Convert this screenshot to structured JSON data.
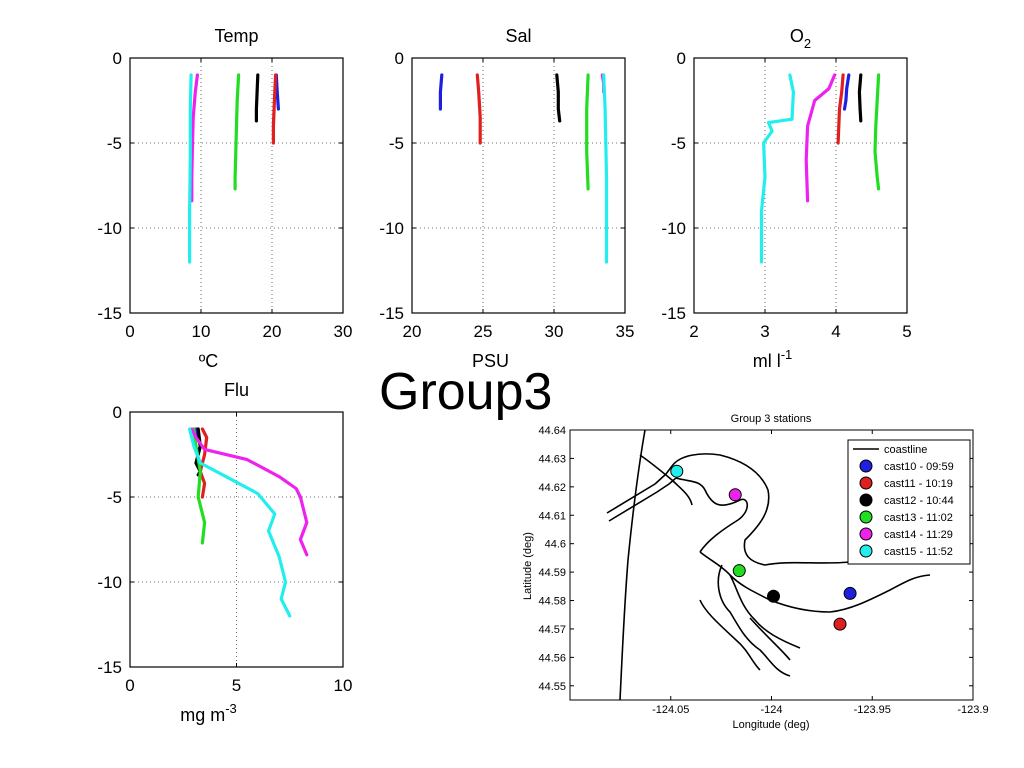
{
  "slide_title": "Group3",
  "profile_colors": {
    "cast10": "#1f1fe0",
    "cast11": "#e01f1f",
    "cast12": "#000000",
    "cast13": "#22dd22",
    "cast14": "#ee22ee",
    "cast15": "#22eeee"
  },
  "chart_data": [
    {
      "type": "line",
      "id": "temp",
      "title": "Temp",
      "xlabel": "ºC",
      "xlim": [
        0,
        30
      ],
      "ylim": [
        -15,
        0
      ],
      "xticks": [
        "0",
        "10",
        "20",
        "30"
      ],
      "yticks": [
        "0",
        "-5",
        "-10",
        "-15"
      ],
      "grid": "dotted",
      "series": [
        {
          "key": "cast10",
          "x": [
            20.6,
            20.7,
            20.8,
            20.9
          ],
          "y": [
            -1,
            -1.8,
            -2.4,
            -3.0
          ]
        },
        {
          "key": "cast11",
          "x": [
            20.5,
            20.4,
            20.3,
            20.2,
            20.2
          ],
          "y": [
            -1,
            -2,
            -3,
            -4,
            -5
          ]
        },
        {
          "key": "cast12",
          "x": [
            18.0,
            17.9,
            17.8,
            17.8
          ],
          "y": [
            -1,
            -2,
            -3,
            -3.7
          ]
        },
        {
          "key": "cast13",
          "x": [
            15.3,
            15.1,
            15.0,
            14.9,
            14.8,
            14.8
          ],
          "y": [
            -1,
            -2.5,
            -4,
            -5.5,
            -7,
            -7.7
          ]
        },
        {
          "key": "cast14",
          "x": [
            9.5,
            9.2,
            8.9,
            8.8,
            8.7,
            8.7
          ],
          "y": [
            -1,
            -2,
            -3.5,
            -5,
            -7,
            -8.4
          ]
        },
        {
          "key": "cast15",
          "x": [
            8.6,
            8.5,
            8.5,
            8.4,
            8.4
          ],
          "y": [
            -1,
            -3,
            -6,
            -9,
            -12
          ]
        }
      ]
    },
    {
      "type": "line",
      "id": "sal",
      "title": "Sal",
      "xlabel": "PSU",
      "xlim": [
        20,
        35
      ],
      "ylim": [
        -15,
        0
      ],
      "xticks": [
        "20",
        "25",
        "30",
        "35"
      ],
      "yticks": [
        "0",
        "-5",
        "-10",
        "-15"
      ],
      "grid": "dotted",
      "series": [
        {
          "key": "cast10",
          "x": [
            22.1,
            22.0,
            22.0
          ],
          "y": [
            -1,
            -2,
            -3
          ]
        },
        {
          "key": "cast11",
          "x": [
            24.6,
            24.7,
            24.8,
            24.8
          ],
          "y": [
            -1,
            -2,
            -3.5,
            -5
          ]
        },
        {
          "key": "cast12",
          "x": [
            30.2,
            30.3,
            30.3,
            30.4
          ],
          "y": [
            -1,
            -2,
            -3,
            -3.7
          ]
        },
        {
          "key": "cast13",
          "x": [
            32.4,
            32.3,
            32.3,
            32.4
          ],
          "y": [
            -1,
            -3,
            -5.5,
            -7.7
          ]
        },
        {
          "key": "cast14",
          "x": [
            33.4,
            33.5,
            33.5
          ],
          "y": [
            -1,
            -1.5,
            -2
          ]
        },
        {
          "key": "cast15",
          "x": [
            33.5,
            33.6,
            33.7,
            33.7
          ],
          "y": [
            -1,
            -3,
            -7,
            -12
          ]
        }
      ]
    },
    {
      "type": "line",
      "id": "o2",
      "title": "O",
      "title_sub": "2",
      "xlabel": "ml l",
      "xlabel_sup": "-1",
      "xlim": [
        2,
        5
      ],
      "ylim": [
        -15,
        0
      ],
      "xticks": [
        "2",
        "3",
        "4",
        "5"
      ],
      "yticks": [
        "0",
        "-5",
        "-10",
        "-15"
      ],
      "grid": "dotted",
      "series": [
        {
          "key": "cast10",
          "x": [
            4.18,
            4.15,
            4.14,
            4.12
          ],
          "y": [
            -1,
            -1.8,
            -2.5,
            -3.0
          ]
        },
        {
          "key": "cast11",
          "x": [
            4.1,
            4.08,
            4.05,
            4.04,
            4.03
          ],
          "y": [
            -1,
            -2,
            -3,
            -4,
            -5
          ]
        },
        {
          "key": "cast12",
          "x": [
            4.35,
            4.33,
            4.34,
            4.35
          ],
          "y": [
            -1,
            -2,
            -3,
            -3.7
          ]
        },
        {
          "key": "cast13",
          "x": [
            4.6,
            4.58,
            4.56,
            4.55,
            4.58,
            4.6
          ],
          "y": [
            -1,
            -2.5,
            -4,
            -5.5,
            -7,
            -7.7
          ]
        },
        {
          "key": "cast14",
          "x": [
            3.98,
            3.9,
            3.7,
            3.6,
            3.58,
            3.6
          ],
          "y": [
            -1,
            -1.8,
            -2.5,
            -4,
            -6,
            -8.4
          ]
        },
        {
          "key": "cast15",
          "x": [
            3.35,
            3.4,
            3.38,
            3.05,
            3.1,
            2.98,
            3.0,
            2.95,
            2.95
          ],
          "y": [
            -1,
            -2,
            -3.6,
            -3.8,
            -4.3,
            -5,
            -7,
            -9,
            -12
          ]
        }
      ]
    },
    {
      "type": "line",
      "id": "flu",
      "title": "Flu",
      "xlabel": "mg m",
      "xlabel_sup": "-3",
      "xlim": [
        0,
        10
      ],
      "ylim": [
        -15,
        0
      ],
      "xticks": [
        "0",
        "5",
        "10"
      ],
      "yticks": [
        "0",
        "-5",
        "-10",
        "-15"
      ],
      "grid": "dotted",
      "series": [
        {
          "key": "cast10",
          "x": [
            3.1,
            3.2,
            3.3,
            3.2
          ],
          "y": [
            -1,
            -1.5,
            -2,
            -2.5
          ]
        },
        {
          "key": "cast11",
          "x": [
            3.4,
            3.6,
            3.5,
            3.3,
            3.5,
            3.4
          ],
          "y": [
            -1,
            -1.5,
            -2.5,
            -3.5,
            -4.2,
            -5
          ]
        },
        {
          "key": "cast12",
          "x": [
            3.2,
            3.3,
            3.1,
            3.3,
            3.2
          ],
          "y": [
            -1,
            -2,
            -3,
            -3.5,
            -3.7
          ]
        },
        {
          "key": "cast13",
          "x": [
            3.0,
            3.1,
            3.3,
            3.2,
            3.5,
            3.4
          ],
          "y": [
            -1,
            -2,
            -3.5,
            -5,
            -6.5,
            -7.7
          ]
        },
        {
          "key": "cast14",
          "x": [
            2.9,
            3.1,
            3.5,
            5.5,
            7.0,
            7.8,
            8.0,
            8.3,
            8.0,
            8.3
          ],
          "y": [
            -1,
            -1.5,
            -2.2,
            -2.8,
            -3.8,
            -4.5,
            -5,
            -6.5,
            -7.5,
            -8.4
          ]
        },
        {
          "key": "cast15",
          "x": [
            2.8,
            3.0,
            3.3,
            4.5,
            6.0,
            6.8,
            6.5,
            7.0,
            7.3,
            7.1,
            7.5
          ],
          "y": [
            -1,
            -2,
            -3,
            -3.8,
            -4.8,
            -6,
            -7,
            -8.5,
            -10,
            -11,
            -12
          ]
        }
      ]
    }
  ],
  "map": {
    "title": "Group 3 stations",
    "xlabel": "Longitude (deg)",
    "ylabel": "Latitude (deg)",
    "xlim": [
      -124.1,
      -123.9
    ],
    "ylim": [
      44.545,
      44.64
    ],
    "xticks": [
      "-124.05",
      "-124",
      "-123.95",
      "-123.9"
    ],
    "xtick_values": [
      -124.05,
      -124.0,
      -123.95,
      -123.9
    ],
    "yticks": [
      "44.64",
      "44.63",
      "44.62",
      "44.61",
      "44.6",
      "44.59",
      "44.58",
      "44.57",
      "44.56",
      "44.55"
    ],
    "ytick_values": [
      44.64,
      44.63,
      44.62,
      44.61,
      44.6,
      44.59,
      44.58,
      44.57,
      44.56,
      44.55
    ],
    "legend": [
      {
        "label": "coastline",
        "kind": "line"
      },
      {
        "label": "cast10 - 09:59",
        "key": "cast10"
      },
      {
        "label": "cast11 - 10:19",
        "key": "cast11"
      },
      {
        "label": "cast12 - 10:44",
        "key": "cast12"
      },
      {
        "label": "cast13 - 11:02",
        "key": "cast13"
      },
      {
        "label": "cast14 - 11:29",
        "key": "cast14"
      },
      {
        "label": "cast15 - 11:52",
        "key": "cast15"
      }
    ],
    "stations": [
      {
        "key": "cast10",
        "lon": -123.961,
        "lat": 44.5825
      },
      {
        "key": "cast11",
        "lon": -123.966,
        "lat": 44.5717
      },
      {
        "key": "cast12",
        "lon": -123.999,
        "lat": 44.5815
      },
      {
        "key": "cast13",
        "lon": -124.016,
        "lat": 44.5905
      },
      {
        "key": "cast14",
        "lon": -124.018,
        "lat": 44.6172
      },
      {
        "key": "cast15",
        "lon": -124.047,
        "lat": 44.6255
      }
    ]
  }
}
